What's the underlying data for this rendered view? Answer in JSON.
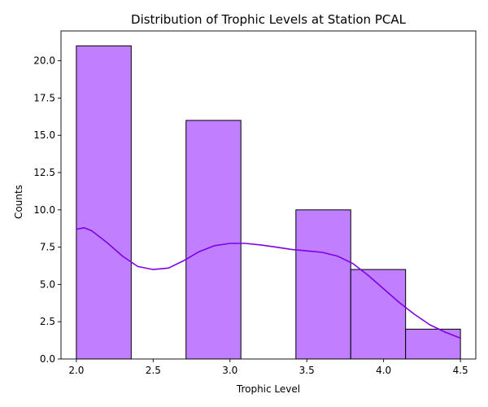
{
  "chart_data": {
    "type": "bar",
    "title": "Distribution of Trophic Levels at Station PCAL",
    "xlabel": "Trophic Level",
    "ylabel": "Counts",
    "xlim": [
      1.9,
      4.6
    ],
    "ylim": [
      0,
      22
    ],
    "xticks": [
      "2.0",
      "2.5",
      "3.0",
      "3.5",
      "4.0",
      "4.5"
    ],
    "yticks": [
      "0.0",
      "2.5",
      "5.0",
      "7.5",
      "10.0",
      "12.5",
      "15.0",
      "17.5",
      "20.0"
    ],
    "grid": false,
    "bins": [
      {
        "x0": 2.0,
        "x1": 2.357,
        "value": 21
      },
      {
        "x0": 2.357,
        "x1": 2.714,
        "value": 0
      },
      {
        "x0": 2.714,
        "x1": 3.071,
        "value": 16
      },
      {
        "x0": 3.071,
        "x1": 3.429,
        "value": 0
      },
      {
        "x0": 3.429,
        "x1": 3.786,
        "value": 10
      },
      {
        "x0": 3.786,
        "x1": 4.143,
        "value": 6
      },
      {
        "x0": 4.143,
        "x1": 4.5,
        "value": 2
      }
    ],
    "kde": {
      "x": [
        2.0,
        2.05,
        2.1,
        2.2,
        2.3,
        2.4,
        2.5,
        2.6,
        2.7,
        2.8,
        2.9,
        3.0,
        3.1,
        3.2,
        3.3,
        3.4,
        3.5,
        3.6,
        3.7,
        3.8,
        3.9,
        4.0,
        4.1,
        4.2,
        4.3,
        4.4,
        4.5
      ],
      "y": [
        8.7,
        8.8,
        8.6,
        7.8,
        6.9,
        6.2,
        6.0,
        6.1,
        6.6,
        7.2,
        7.6,
        7.75,
        7.75,
        7.65,
        7.5,
        7.35,
        7.25,
        7.15,
        6.9,
        6.4,
        5.6,
        4.7,
        3.8,
        3.0,
        2.3,
        1.8,
        1.4
      ]
    },
    "bar_color": "#bf7fff",
    "bar_edge_color": "#000000",
    "line_color": "#7f00e6"
  }
}
